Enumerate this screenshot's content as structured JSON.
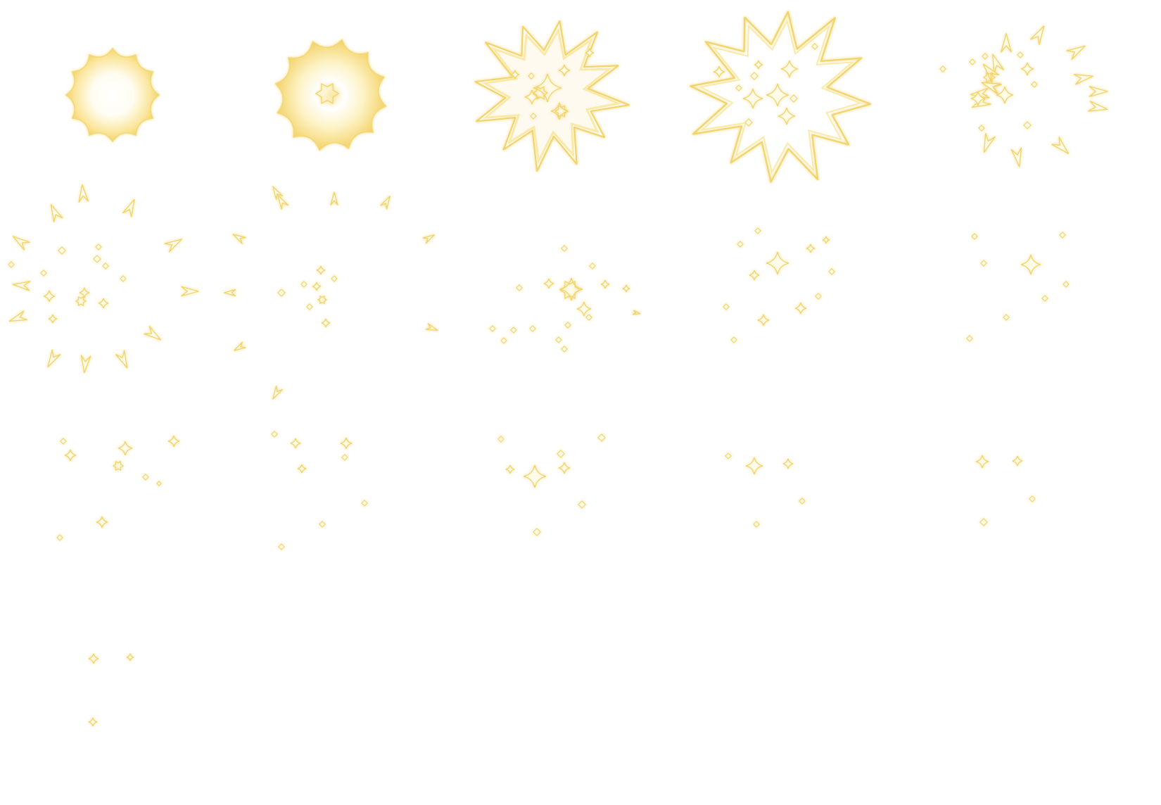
{
  "sheet": {
    "type": "sprite-sheet",
    "effect": "star-burst-explosion",
    "columns": 5,
    "rows": 4,
    "frame_count": 16,
    "colors": {
      "background": "#ffffff",
      "stroke": "#f2d46a",
      "glow": "#fbe9a8",
      "fill_core": "#ffffff",
      "fill_mid": "#fdf2c4",
      "fill_edge": "#f6d970"
    }
  },
  "frames": [
    {
      "index": 1,
      "stage": "core-flash"
    },
    {
      "index": 2,
      "stage": "core-expand"
    },
    {
      "index": 3,
      "stage": "shockwave-sparkles"
    },
    {
      "index": 4,
      "stage": "shockwave-outline"
    },
    {
      "index": 5,
      "stage": "shards-scatter"
    },
    {
      "index": 6,
      "stage": "shards-scatter"
    },
    {
      "index": 7,
      "stage": "shards-fade"
    },
    {
      "index": 8,
      "stage": "sparkles"
    },
    {
      "index": 9,
      "stage": "sparkles"
    },
    {
      "index": 10,
      "stage": "sparkles"
    },
    {
      "index": 11,
      "stage": "sparkles"
    },
    {
      "index": 12,
      "stage": "sparkles-fade"
    },
    {
      "index": 13,
      "stage": "sparkles-fade"
    },
    {
      "index": 14,
      "stage": "sparkles-fade"
    },
    {
      "index": 15,
      "stage": "sparkles-fade"
    },
    {
      "index": 16,
      "stage": "sparkles-end"
    }
  ]
}
